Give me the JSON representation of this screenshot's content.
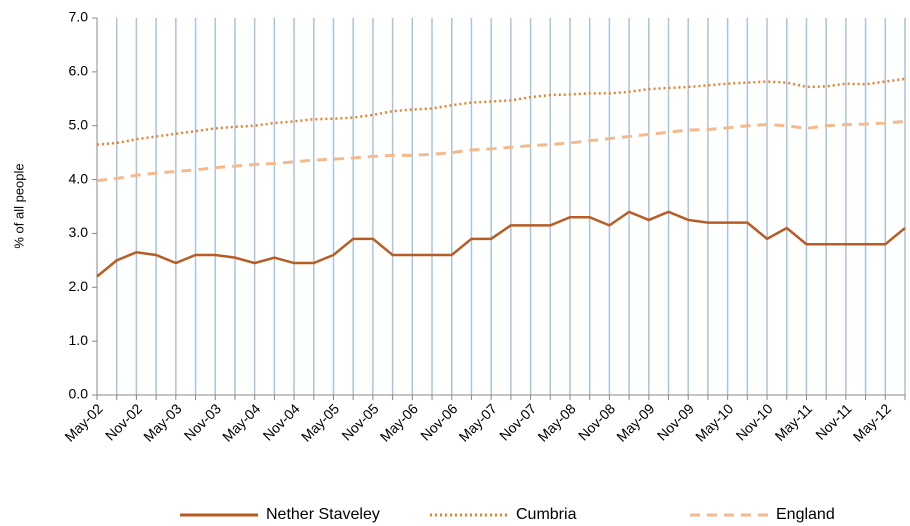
{
  "chart_data": {
    "type": "line",
    "y_label": "% of all people",
    "categories": [
      "May-02",
      null,
      "Nov-02",
      null,
      "May-03",
      null,
      "Nov-03",
      null,
      "May-04",
      null,
      "Nov-04",
      null,
      "May-05",
      null,
      "Nov-05",
      null,
      "May-06",
      null,
      "Nov-06",
      null,
      "May-07",
      null,
      "Nov-07",
      null,
      "May-08",
      null,
      "Nov-08",
      null,
      "May-09",
      null,
      "Nov-09",
      null,
      "May-10",
      null,
      "Nov-10",
      null,
      "May-11",
      null,
      "Nov-11",
      null,
      "May-12",
      null
    ],
    "series": [
      {
        "name": "Nether Staveley",
        "color": "#b85c23",
        "dash": "solid",
        "values": [
          2.2,
          2.5,
          2.65,
          2.6,
          2.45,
          2.6,
          2.6,
          2.55,
          2.45,
          2.55,
          2.45,
          2.45,
          2.6,
          2.9,
          2.9,
          2.6,
          2.6,
          2.6,
          2.6,
          2.9,
          2.9,
          3.15,
          3.15,
          3.15,
          3.3,
          3.3,
          3.15,
          3.4,
          3.25,
          3.4,
          3.25,
          3.2,
          3.2,
          3.2,
          2.9,
          3.1,
          2.8,
          2.8,
          2.8,
          2.8,
          2.8,
          3.1
        ]
      },
      {
        "name": "Cumbria",
        "color": "#e8802e",
        "dash": "dotted",
        "values": [
          4.65,
          4.68,
          4.75,
          4.8,
          4.85,
          4.9,
          4.95,
          4.98,
          5.0,
          5.05,
          5.08,
          5.12,
          5.13,
          5.15,
          5.2,
          5.27,
          5.3,
          5.32,
          5.38,
          5.43,
          5.45,
          5.47,
          5.53,
          5.57,
          5.58,
          5.6,
          5.6,
          5.63,
          5.68,
          5.7,
          5.72,
          5.75,
          5.78,
          5.8,
          5.82,
          5.8,
          5.72,
          5.73,
          5.78,
          5.77,
          5.82,
          5.87
        ]
      },
      {
        "name": "England",
        "color": "#f5b98c",
        "dash": "dashed",
        "values": [
          3.98,
          4.02,
          4.08,
          4.12,
          4.15,
          4.18,
          4.22,
          4.25,
          4.28,
          4.3,
          4.33,
          4.36,
          4.38,
          4.4,
          4.43,
          4.45,
          4.45,
          4.47,
          4.5,
          4.55,
          4.57,
          4.6,
          4.63,
          4.65,
          4.68,
          4.72,
          4.76,
          4.8,
          4.84,
          4.88,
          4.92,
          4.93,
          4.96,
          5.0,
          5.02,
          5.0,
          4.95,
          5.0,
          5.02,
          5.03,
          5.05,
          5.08
        ]
      }
    ],
    "ylim": [
      0,
      7
    ],
    "yticks": [
      {
        "value": 0,
        "label": "0.0"
      },
      {
        "value": 1,
        "label": "1.0"
      },
      {
        "value": 2,
        "label": "2.0"
      },
      {
        "value": 3,
        "label": "3.0"
      },
      {
        "value": 4,
        "label": "4.0"
      },
      {
        "value": 5,
        "label": "5.0"
      },
      {
        "value": 6,
        "label": "6.0"
      },
      {
        "value": 7,
        "label": "7.0"
      }
    ],
    "grid": true,
    "grid_color": "#a9c4de",
    "legend": "bottom"
  }
}
